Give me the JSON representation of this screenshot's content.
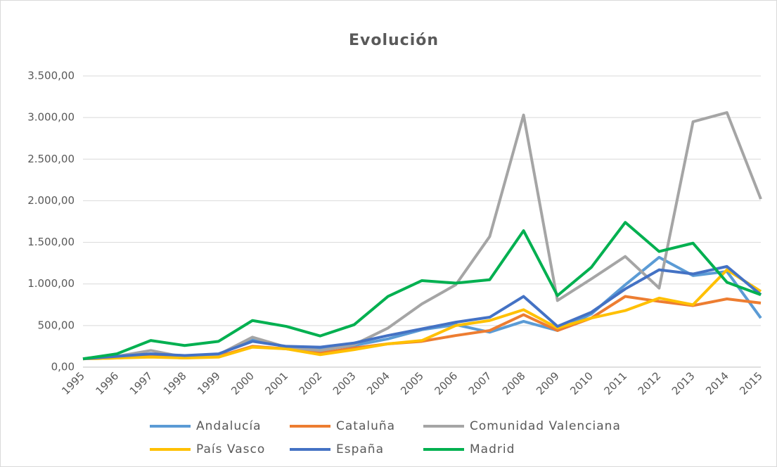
{
  "chart_data": {
    "type": "line",
    "title": "Evolución",
    "categories": [
      "1995",
      "1996",
      "1997",
      "1998",
      "1999",
      "2000",
      "2001",
      "2002",
      "2003",
      "2004",
      "2005",
      "2006",
      "2007",
      "2008",
      "2009",
      "2010",
      "2011",
      "2012",
      "2013",
      "2014",
      "2015"
    ],
    "series": [
      {
        "name": "Andalucía",
        "color": "#5b9bd5",
        "values": [
          100,
          120,
          150,
          130,
          150,
          340,
          240,
          210,
          260,
          340,
          450,
          510,
          420,
          550,
          440,
          640,
          990,
          1320,
          1100,
          1150,
          590
        ]
      },
      {
        "name": "Cataluña",
        "color": "#ed7d31",
        "values": [
          100,
          110,
          130,
          110,
          130,
          250,
          220,
          170,
          230,
          280,
          310,
          380,
          440,
          630,
          440,
          590,
          850,
          790,
          740,
          820,
          770
        ]
      },
      {
        "name": "Comunidad Valenciana",
        "color": "#a5a5a5",
        "values": [
          100,
          130,
          200,
          120,
          150,
          360,
          240,
          200,
          270,
          470,
          760,
          990,
          1570,
          3030,
          800,
          1060,
          1330,
          950,
          2950,
          3060,
          2020
        ]
      },
      {
        "name": "País Vasco",
        "color": "#ffc000",
        "values": [
          100,
          110,
          120,
          110,
          120,
          240,
          220,
          150,
          210,
          280,
          320,
          500,
          560,
          690,
          470,
          590,
          680,
          830,
          750,
          1170,
          910
        ]
      },
      {
        "name": "España",
        "color": "#4472c4",
        "values": [
          100,
          130,
          160,
          140,
          160,
          310,
          250,
          240,
          290,
          380,
          460,
          540,
          600,
          850,
          490,
          660,
          940,
          1170,
          1120,
          1210,
          870
        ]
      },
      {
        "name": "Madrid",
        "color": "#00b050",
        "values": [
          100,
          160,
          320,
          260,
          310,
          560,
          490,
          375,
          510,
          850,
          1040,
          1010,
          1050,
          1640,
          860,
          1200,
          1740,
          1390,
          1490,
          1020,
          870
        ]
      }
    ],
    "ylim": [
      0,
      3500
    ],
    "yticks": [
      {
        "value": 0,
        "label": "0,00"
      },
      {
        "value": 500,
        "label": "500,00"
      },
      {
        "value": 1000,
        "label": "1.000,00"
      },
      {
        "value": 1500,
        "label": "1.500,00"
      },
      {
        "value": 2000,
        "label": "2.000,00"
      },
      {
        "value": 2500,
        "label": "2.500,00"
      },
      {
        "value": 3000,
        "label": "3.000,00"
      },
      {
        "value": 3500,
        "label": "3.500,00"
      }
    ],
    "grid": true,
    "legend": "bottom"
  }
}
